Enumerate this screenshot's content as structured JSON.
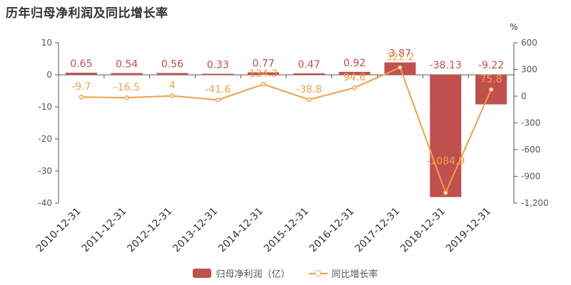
{
  "title": "历年归母净利润及同比增长率",
  "chart_data": {
    "type": "bar",
    "categories": [
      "2010-12-31",
      "2011-12-31",
      "2012-12-31",
      "2013-12-31",
      "2014-12-31",
      "2015-12-31",
      "2016-12-31",
      "2017-12-31",
      "2018-12-31",
      "2019-12-31"
    ],
    "series": [
      {
        "name": "归母净利润（亿）",
        "type": "bar",
        "axis": "left",
        "color": "#c0504d",
        "values": [
          0.65,
          0.54,
          0.56,
          0.33,
          0.77,
          0.47,
          0.92,
          3.87,
          -38.13,
          -9.22
        ],
        "labels": [
          "0.65",
          "0.54",
          "0.56",
          "0.33",
          "0.77",
          "0.47",
          "0.92",
          "3.87",
          "-38.13",
          "-9.22"
        ]
      },
      {
        "name": "同比增长率",
        "type": "line",
        "axis": "right",
        "color": "#f0a04b",
        "values": [
          -9.7,
          -16.5,
          4,
          -41.6,
          134.3,
          -38.8,
          94.6,
          322.2,
          -1084.9,
          75.8
        ],
        "labels": [
          "-9.7",
          "-16.5",
          "4",
          "-41.6",
          "134.3",
          "-38.8",
          "94.6",
          "322.2",
          "-1084.9",
          "75.8"
        ]
      }
    ],
    "ylim_left": [
      -40,
      10
    ],
    "yticks_left": [
      "10",
      "0",
      "-10",
      "-20",
      "-30",
      "-40"
    ],
    "ylim_right": [
      -1200,
      600
    ],
    "yticks_right": [
      "600",
      "300",
      "0",
      "-300",
      "-600",
      "-900",
      "-1,200"
    ],
    "ylabel_right": "%",
    "legend_position": "bottom-center",
    "grid": false
  }
}
